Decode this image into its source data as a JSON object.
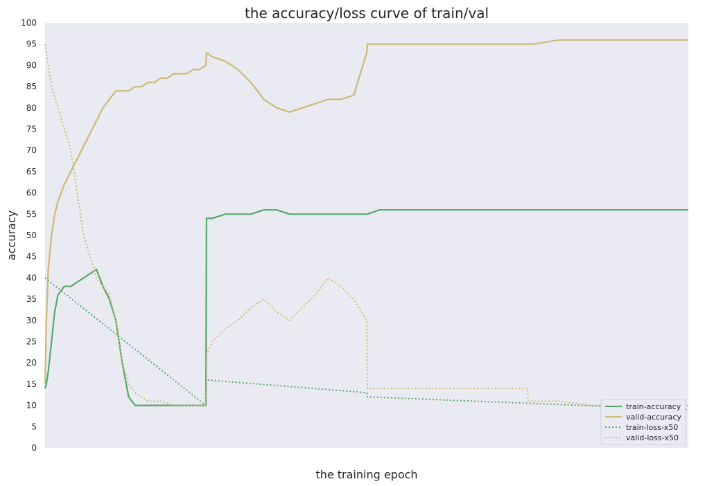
{
  "chart_data": {
    "type": "line",
    "title": "the accuracy/loss curve of train/val",
    "xlabel": "the training epoch",
    "ylabel": "accuracy",
    "ylim": [
      0,
      100
    ],
    "yticks": [
      0,
      5,
      10,
      15,
      20,
      25,
      30,
      35,
      40,
      45,
      50,
      55,
      60,
      65,
      70,
      75,
      80,
      85,
      90,
      95,
      100
    ],
    "xlim": [
      0,
      1000
    ],
    "grid": false,
    "legend_position": "lower-right",
    "background": "#eaeaf2",
    "series": [
      {
        "name": "train-accuracy",
        "color": "#55a868",
        "style": "solid",
        "x": [
          0,
          2,
          5,
          10,
          15,
          20,
          30,
          40,
          50,
          60,
          70,
          80,
          90,
          100,
          110,
          120,
          130,
          140,
          150,
          160,
          170,
          180,
          190,
          200,
          210,
          220,
          230,
          240,
          250,
          251,
          260,
          280,
          300,
          320,
          340,
          360,
          380,
          400,
          420,
          440,
          460,
          480,
          500,
          501,
          520,
          560,
          600,
          640,
          700,
          760,
          800,
          850,
          900,
          950,
          1000
        ],
        "y": [
          14,
          15,
          18,
          25,
          32,
          36,
          38,
          38,
          39,
          40,
          41,
          42,
          38,
          35,
          30,
          20,
          12,
          10,
          10,
          10,
          10,
          10,
          10,
          10,
          10,
          10,
          10,
          10,
          10,
          54,
          54,
          55,
          55,
          55,
          56,
          56,
          55,
          55,
          55,
          55,
          55,
          55,
          55,
          55,
          56,
          56,
          56,
          56,
          56,
          56,
          56,
          56,
          56,
          56,
          56
        ]
      },
      {
        "name": "valid-accuracy",
        "color": "#ccb974",
        "style": "solid",
        "x": [
          0,
          2,
          5,
          10,
          15,
          20,
          30,
          40,
          50,
          60,
          70,
          80,
          90,
          100,
          110,
          120,
          130,
          140,
          150,
          160,
          170,
          180,
          190,
          200,
          210,
          220,
          230,
          240,
          250,
          251,
          260,
          280,
          300,
          320,
          340,
          360,
          380,
          400,
          420,
          440,
          460,
          480,
          500,
          501,
          520,
          560,
          600,
          640,
          700,
          760,
          800,
          850,
          900,
          950,
          1000
        ],
        "y": [
          15,
          30,
          42,
          50,
          55,
          58,
          62,
          65,
          68,
          71,
          74,
          77,
          80,
          82,
          84,
          84,
          84,
          85,
          85,
          86,
          86,
          87,
          87,
          88,
          88,
          88,
          89,
          89,
          90,
          93,
          92,
          91,
          89,
          86,
          82,
          80,
          79,
          80,
          81,
          82,
          82,
          83,
          93,
          95,
          95,
          95,
          95,
          95,
          95,
          95,
          96,
          96,
          96,
          96,
          96
        ]
      },
      {
        "name": "train-loss-x50",
        "color": "#55a868",
        "style": "dotted",
        "x": [
          0,
          250,
          251,
          500,
          501,
          1000
        ],
        "y": [
          40,
          10,
          16,
          13,
          12,
          9
        ]
      },
      {
        "name": "valid-loss-x50",
        "color": "#ccb974",
        "style": "dotted",
        "x": [
          0,
          5,
          10,
          20,
          30,
          40,
          50,
          60,
          70,
          80,
          90,
          100,
          110,
          120,
          130,
          140,
          150,
          160,
          180,
          200,
          220,
          240,
          250,
          251,
          260,
          280,
          300,
          320,
          340,
          360,
          380,
          400,
          420,
          440,
          460,
          480,
          500,
          501,
          520,
          560,
          600,
          640,
          700,
          750,
          751,
          800,
          850,
          900,
          950,
          1000
        ],
        "y": [
          95,
          90,
          85,
          80,
          75,
          70,
          60,
          50,
          45,
          40,
          38,
          36,
          30,
          20,
          15,
          13,
          12,
          11,
          11,
          10,
          10,
          10,
          10,
          22,
          25,
          28,
          30,
          33,
          35,
          32,
          30,
          33,
          36,
          40,
          38,
          35,
          30,
          14,
          14,
          14,
          14,
          14,
          14,
          14,
          11,
          11,
          10,
          10,
          10,
          10
        ]
      }
    ]
  }
}
